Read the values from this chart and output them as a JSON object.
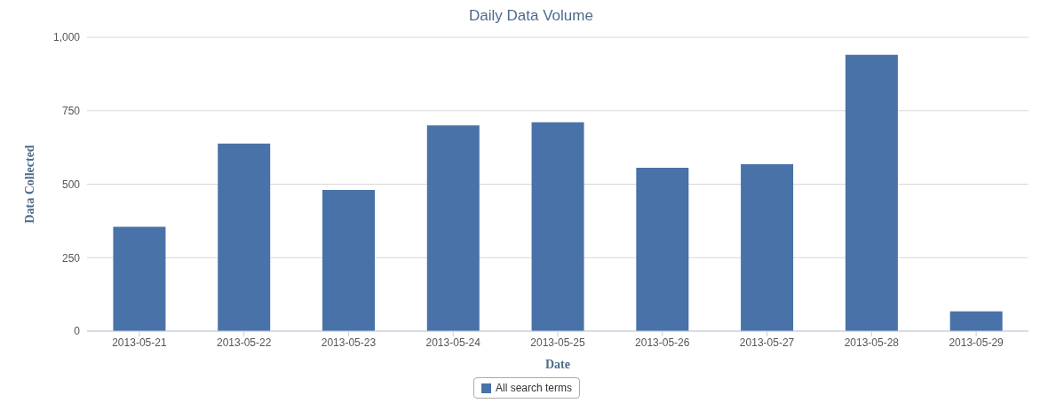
{
  "chart_data": {
    "type": "bar",
    "title": "Daily Data Volume",
    "xlabel": "Date",
    "ylabel": "Data Collected",
    "categories": [
      "2013-05-21",
      "2013-05-22",
      "2013-05-23",
      "2013-05-24",
      "2013-05-25",
      "2013-05-26",
      "2013-05-27",
      "2013-05-28",
      "2013-05-29"
    ],
    "series": [
      {
        "name": "All search terms",
        "color": "#4872a8",
        "values": [
          355,
          638,
          480,
          700,
          711,
          556,
          568,
          940,
          67
        ]
      }
    ],
    "ylim": [
      0,
      1000
    ],
    "yticks": [
      0,
      250,
      500,
      750,
      {
        "value": 1000,
        "label": "1,000"
      }
    ],
    "grid": "y",
    "legend": "bottom"
  }
}
